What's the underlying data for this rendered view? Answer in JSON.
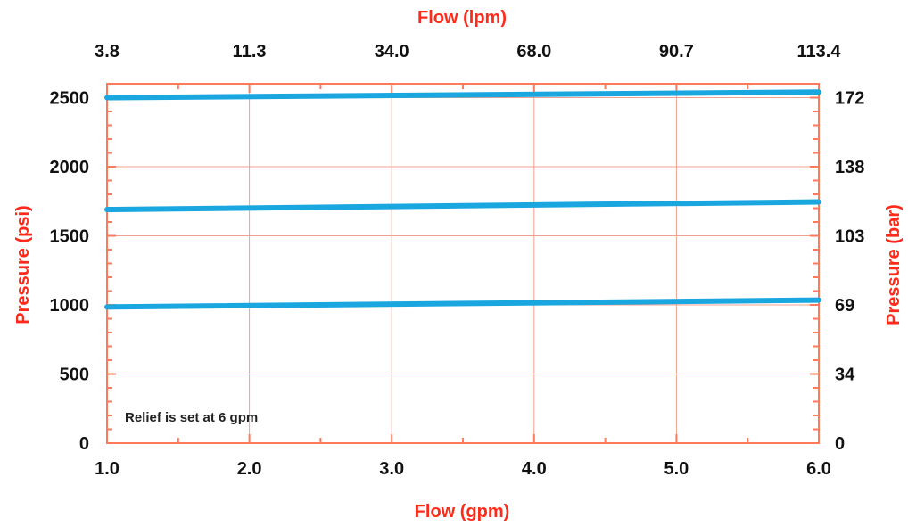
{
  "chart_data": {
    "type": "line",
    "x_bottom": {
      "label": "Flow (gpm)",
      "range": [
        1.0,
        6.0
      ],
      "ticks": [
        1.0,
        2.0,
        3.0,
        4.0,
        5.0,
        6.0
      ],
      "tick_labels": [
        "1.0",
        "2.0",
        "3.0",
        "4.0",
        "5.0",
        "6.0"
      ]
    },
    "x_top": {
      "label": "Flow (lpm)",
      "tick_labels": [
        "3.8",
        "11.3",
        "34.0",
        "68.0",
        "90.7",
        "113.4"
      ]
    },
    "y_left": {
      "label": "Pressure (psi)",
      "range": [
        0,
        2600
      ],
      "ticks": [
        0,
        500,
        1000,
        1500,
        2000,
        2500
      ],
      "tick_labels": [
        "0",
        "500",
        "1000",
        "1500",
        "2000",
        "2500"
      ]
    },
    "y_right": {
      "label": "Pressure (bar)",
      "tick_labels": [
        "0",
        "34",
        "69",
        "103",
        "138",
        "172"
      ]
    },
    "series": [
      {
        "x": [
          1.0,
          6.0
        ],
        "y": [
          2500,
          2540
        ]
      },
      {
        "x": [
          1.0,
          6.0
        ],
        "y": [
          1690,
          1745
        ]
      },
      {
        "x": [
          1.0,
          6.0
        ],
        "y": [
          985,
          1035
        ]
      }
    ],
    "annotation": "Relief is set at 6 gpm",
    "grid": true,
    "colors": {
      "series": "#1aa7e0",
      "axis_title": "#ff2a1a",
      "frame": "#ff7a5a",
      "grid": "#f0a090"
    }
  }
}
